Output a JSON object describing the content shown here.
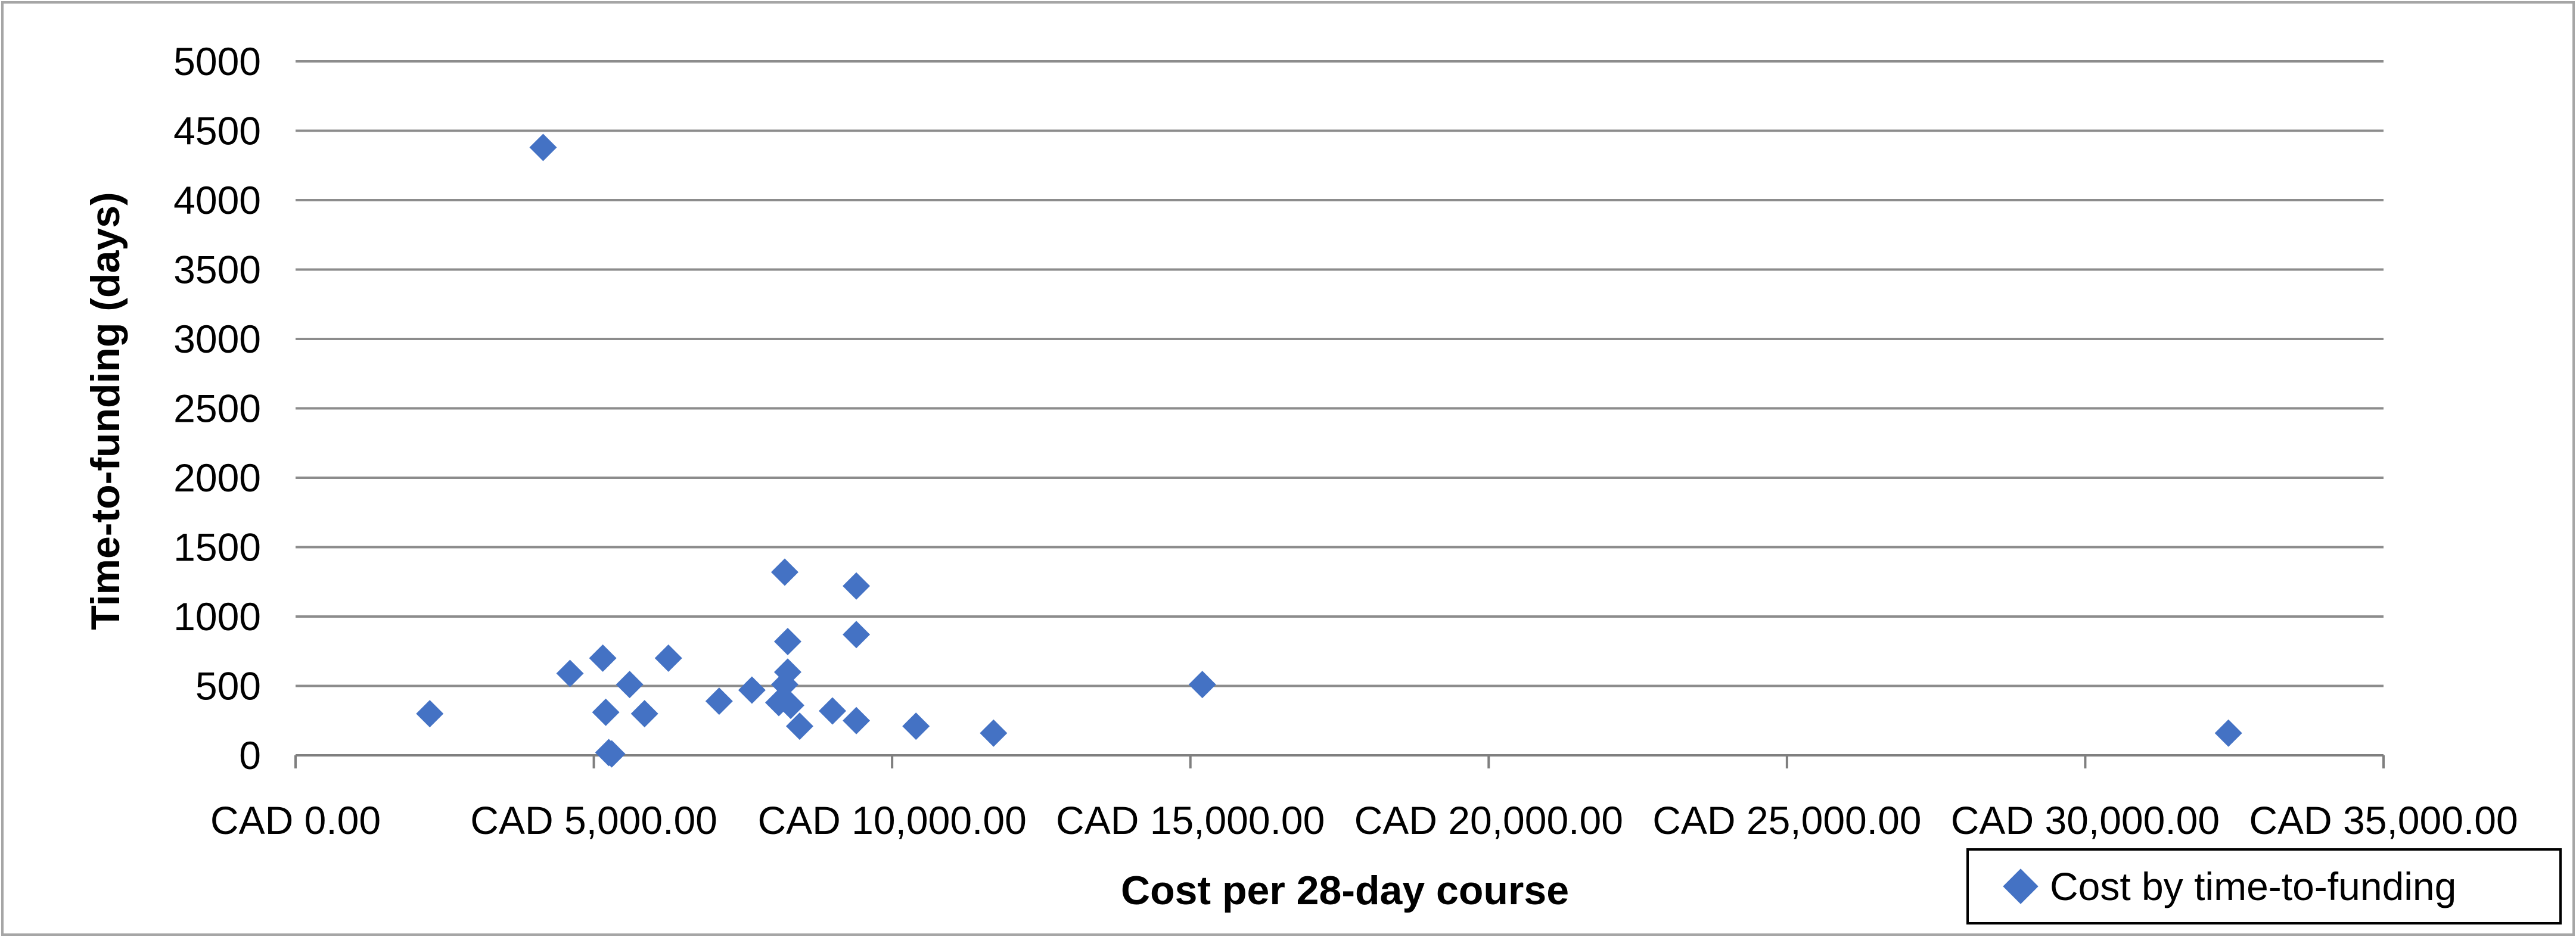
{
  "chart_data": {
    "type": "scatter",
    "title": "",
    "xlabel": "Cost per 28-day course",
    "ylabel": "Time-to-funding (days)",
    "xlim": [
      0,
      35000
    ],
    "ylim": [
      0,
      5000
    ],
    "x_ticks": [
      0,
      5000,
      10000,
      15000,
      20000,
      25000,
      30000,
      35000
    ],
    "x_tick_labels": [
      "CAD 0.00",
      "CAD 5,000.00",
      "CAD 10,000.00",
      "CAD 15,000.00",
      "CAD 20,000.00",
      "CAD 25,000.00",
      "CAD 30,000.00",
      "CAD 35,000.00"
    ],
    "y_ticks": [
      0,
      500,
      1000,
      1500,
      2000,
      2500,
      3000,
      3500,
      4000,
      4500,
      5000
    ],
    "y_tick_labels": [
      "0",
      "500",
      "1000",
      "1500",
      "2000",
      "2500",
      "3000",
      "3500",
      "4000",
      "4500",
      "5000"
    ],
    "grid": "horizontal",
    "legend_position": "bottom-right",
    "marker_color": "#4472C4",
    "series": [
      {
        "name": "Cost by time-to-funding",
        "points": [
          {
            "x": 2250,
            "y": 300
          },
          {
            "x": 4150,
            "y": 4380
          },
          {
            "x": 4600,
            "y": 590
          },
          {
            "x": 5150,
            "y": 700
          },
          {
            "x": 5200,
            "y": 310
          },
          {
            "x": 5250,
            "y": 20
          },
          {
            "x": 5300,
            "y": 10
          },
          {
            "x": 5600,
            "y": 510
          },
          {
            "x": 5850,
            "y": 300
          },
          {
            "x": 6250,
            "y": 700
          },
          {
            "x": 7100,
            "y": 390
          },
          {
            "x": 7650,
            "y": 470
          },
          {
            "x": 8100,
            "y": 380
          },
          {
            "x": 8200,
            "y": 1320
          },
          {
            "x": 8200,
            "y": 510
          },
          {
            "x": 8250,
            "y": 820
          },
          {
            "x": 8250,
            "y": 600
          },
          {
            "x": 8300,
            "y": 360
          },
          {
            "x": 8450,
            "y": 210
          },
          {
            "x": 9000,
            "y": 320
          },
          {
            "x": 9400,
            "y": 1220
          },
          {
            "x": 9400,
            "y": 870
          },
          {
            "x": 9400,
            "y": 250
          },
          {
            "x": 10400,
            "y": 210
          },
          {
            "x": 11700,
            "y": 160
          },
          {
            "x": 15200,
            "y": 510
          },
          {
            "x": 32400,
            "y": 160
          }
        ]
      }
    ]
  }
}
